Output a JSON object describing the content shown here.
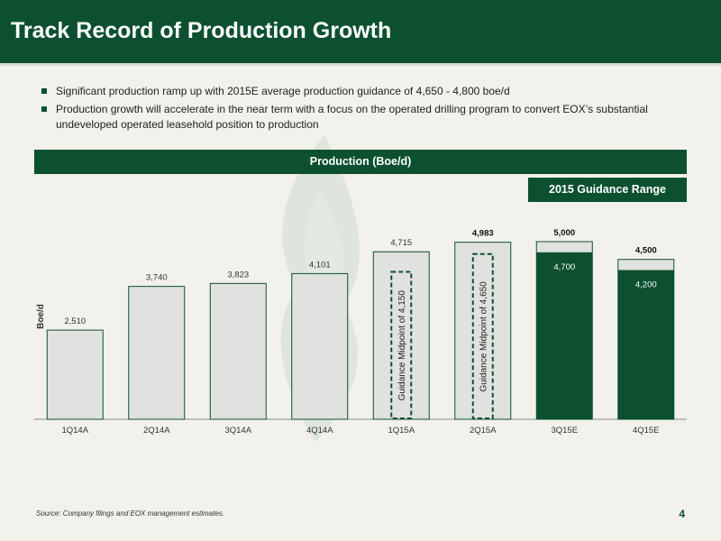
{
  "header": {
    "title": "Track Record of Production Growth"
  },
  "bullets": [
    "Significant production ramp up with 2015E average production guidance of 4,650 - 4,800 boe/d",
    "Production growth will accelerate in the near term with a focus on the operated drilling program to convert EOX’s substantial undeveloped operated leasehold position to production"
  ],
  "banner": {
    "title": "Production (Boe/d)"
  },
  "badge": {
    "label": "2015 Guidance Range"
  },
  "footer": {
    "source": "Source: Company filings and EOX management estimates.",
    "page": "4"
  },
  "colors": {
    "dark_green": "#0c5030",
    "light_gray": "#e1e1df",
    "bar_border": "#0c5030"
  },
  "chart_data": {
    "type": "bar",
    "ylabel": "Boe/d",
    "ylim": [
      0,
      6000
    ],
    "categories": [
      "1Q14A",
      "2Q14A",
      "3Q14A",
      "4Q14A",
      "1Q15A",
      "2Q15A",
      "3Q15E",
      "4Q15E"
    ],
    "values": [
      2510,
      3740,
      3823,
      4101,
      4715,
      4983,
      5000,
      4500
    ],
    "value_labels": [
      "2,510",
      "3,740",
      "3,823",
      "4,101",
      "4,715",
      "4,983",
      "5,000",
      "4,500"
    ],
    "guidance_low": [
      null,
      null,
      null,
      null,
      null,
      null,
      4700,
      4200
    ],
    "guidance_low_labels": [
      "",
      "",
      "",
      "",
      "",
      "",
      "4,700",
      "4,200"
    ],
    "midpoints": [
      {
        "category": "1Q15A",
        "value": 4150,
        "label": "Guidance Midpoint of 4,150"
      },
      {
        "category": "2Q15A",
        "value": 4650,
        "label": "Guidance Midpoint of 4,650"
      }
    ]
  }
}
